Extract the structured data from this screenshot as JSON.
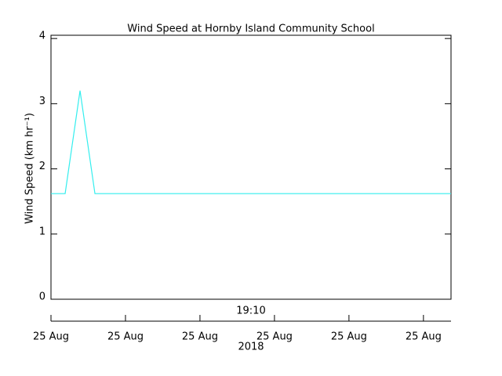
{
  "chart_data": {
    "type": "line",
    "title": "Wind Speed at Hornby Island Community School",
    "y_label": "Wind Speed (km hr⁻¹)",
    "x_annotation": "19:10",
    "x_label": "2018",
    "x": [
      0,
      0.19,
      0.39,
      0.59,
      5.37
    ],
    "series": [
      {
        "name": "Wind Speed",
        "color": "#33eeee",
        "values": [
          1.62,
          1.62,
          3.2,
          1.62,
          1.62
        ]
      }
    ],
    "xlim": [
      0,
      5.37
    ],
    "xticks": [
      {
        "value": 0,
        "label": "25 Aug"
      },
      {
        "value": 1,
        "label": "25 Aug"
      },
      {
        "value": 2,
        "label": "25 Aug"
      },
      {
        "value": 3,
        "label": "25 Aug"
      },
      {
        "value": 4,
        "label": "25 Aug"
      },
      {
        "value": 5,
        "label": "25 Aug"
      }
    ],
    "ylim": [
      0,
      4.05
    ],
    "yticks": [
      0,
      1,
      2,
      3,
      4
    ],
    "grid": false
  }
}
